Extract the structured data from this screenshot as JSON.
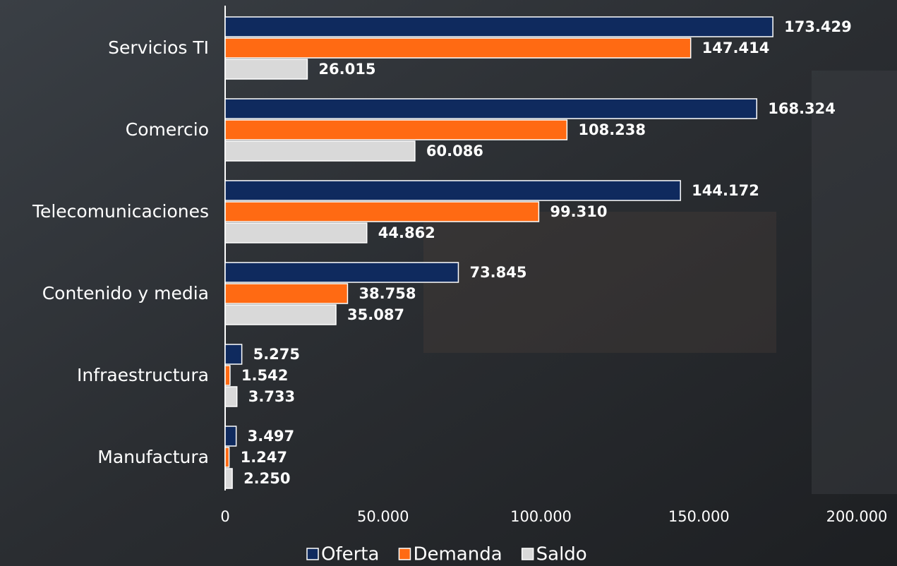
{
  "chart_data": {
    "type": "bar",
    "orientation": "horizontal",
    "categories": [
      "Servicios TI",
      "Comercio",
      "Telecomunicaciones",
      "Contenido y media",
      "Infraestructura",
      "Manufactura"
    ],
    "series": [
      {
        "name": "Oferta",
        "color": "#0f2a5e",
        "values": [
          173429,
          168324,
          144172,
          73845,
          5275,
          3497
        ],
        "value_labels": [
          "173.429",
          "168.324",
          "144.172",
          "73.845",
          "5.275",
          "3.497"
        ]
      },
      {
        "name": "Demanda",
        "color": "#ff6a13",
        "values": [
          147414,
          108238,
          99310,
          38758,
          1542,
          1247
        ],
        "value_labels": [
          "147.414",
          "108.238",
          "99.310",
          "38.758",
          "1.542",
          "1.247"
        ]
      },
      {
        "name": "Saldo",
        "color": "#d9d9d9",
        "values": [
          26015,
          60086,
          44862,
          35087,
          3733,
          2250
        ],
        "value_labels": [
          "26.015",
          "60.086",
          "44.862",
          "35.087",
          "3.733",
          "2.250"
        ]
      }
    ],
    "xlim": [
      0,
      200000
    ],
    "xticks": [
      0,
      {
        "value": 50000,
        "label": "50.000"
      },
      {
        "value": 100000,
        "label": "100.000"
      },
      {
        "value": 150000,
        "label": "150.000"
      },
      {
        "value": 200000,
        "label": "200.000"
      }
    ],
    "grid": false,
    "legend": "bottom"
  }
}
